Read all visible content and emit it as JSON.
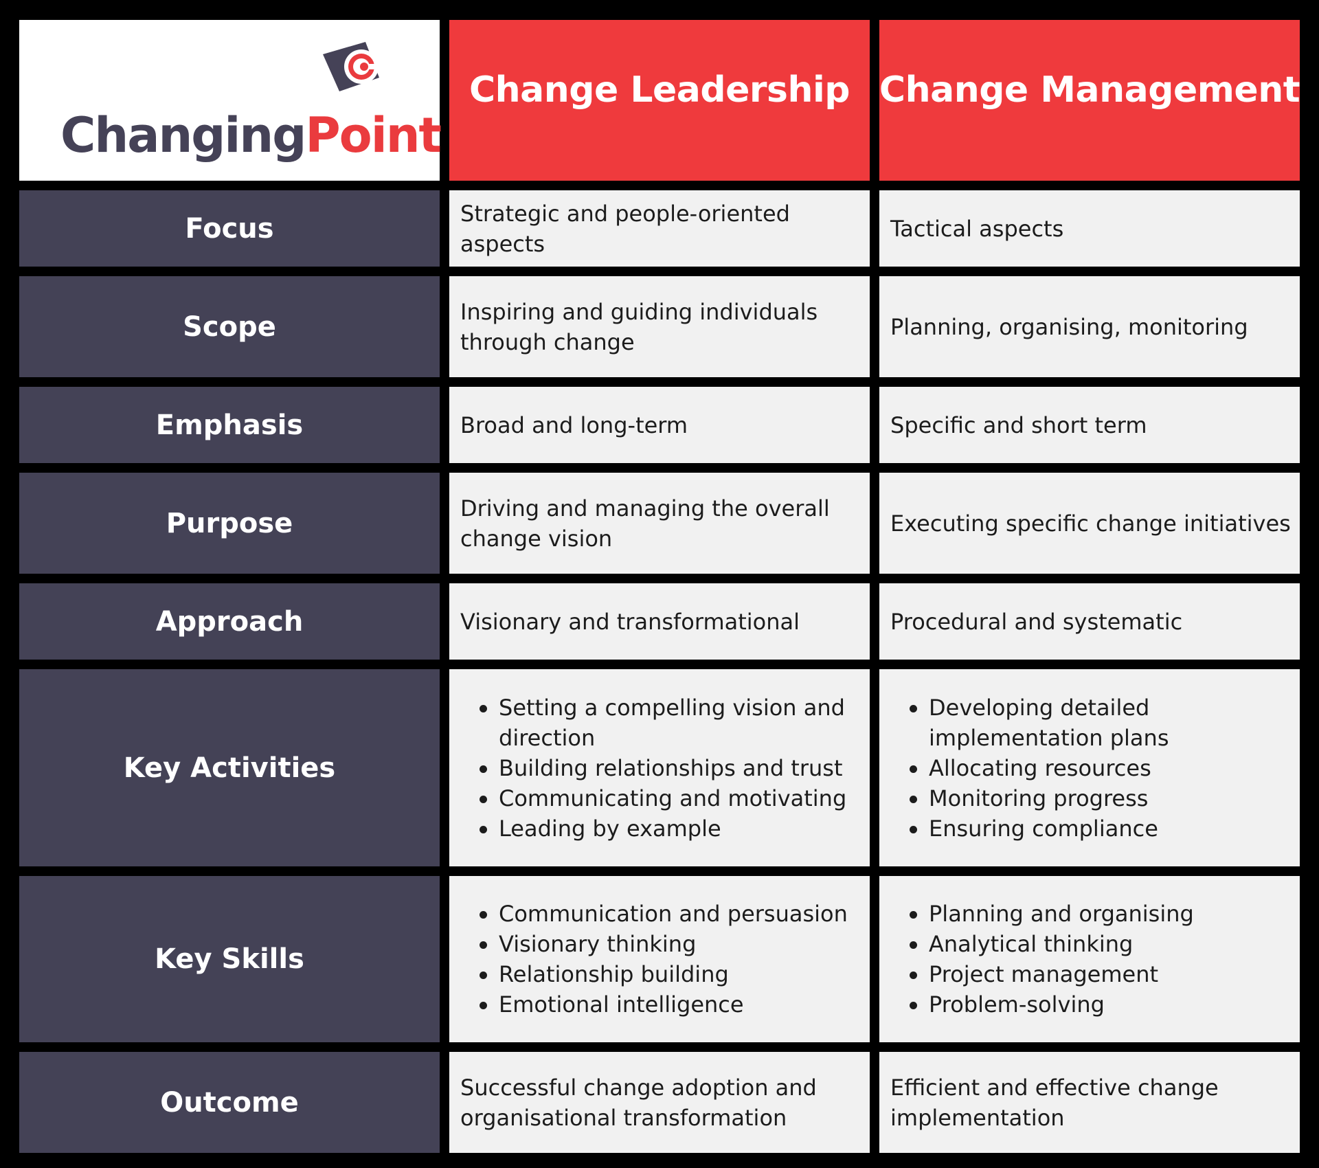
{
  "logo": {
    "word1": "Changing",
    "word2": "Point",
    "colors": {
      "dark": "#454257",
      "accent": "#ea3b3e"
    }
  },
  "columns": [
    "Change Leadership",
    "Change Management"
  ],
  "rows": [
    {
      "label": "Focus",
      "leadership": "Strategic and people-oriented aspects",
      "management": "Tactical aspects"
    },
    {
      "label": "Scope",
      "leadership": "Inspiring and guiding individuals through change",
      "management": "Planning, organising, monitoring"
    },
    {
      "label": "Emphasis",
      "leadership": "Broad and long-term",
      "management": "Specific and short term"
    },
    {
      "label": "Purpose",
      "leadership": "Driving and managing the overall change vision",
      "management": "Executing specific change initiatives"
    },
    {
      "label": "Approach",
      "leadership": "Visionary and transformational",
      "management": "Procedural and systematic"
    },
    {
      "label": "Key Activities",
      "leadership": [
        "Setting a compelling vision and direction",
        "Building relationships and trust",
        "Communicating and motivating",
        "Leading by example"
      ],
      "management": [
        "Developing detailed implementation plans",
        "Allocating resources",
        "Monitoring progress",
        "Ensuring compliance"
      ]
    },
    {
      "label": "Key Skills",
      "leadership": [
        "Communication and persuasion",
        "Visionary thinking",
        "Relationship building",
        "Emotional intelligence"
      ],
      "management": [
        "Planning and organising",
        "Analytical thinking",
        "Project management",
        "Problem-solving"
      ]
    },
    {
      "label": "Outcome",
      "leadership": "Successful change adoption and organisational transformation",
      "management": "Efficient and effective change implementation"
    }
  ],
  "colors": {
    "header_red": "#ef3a3d",
    "row_header": "#444256",
    "cell_bg": "#f1f1f1",
    "background": "#000000"
  }
}
